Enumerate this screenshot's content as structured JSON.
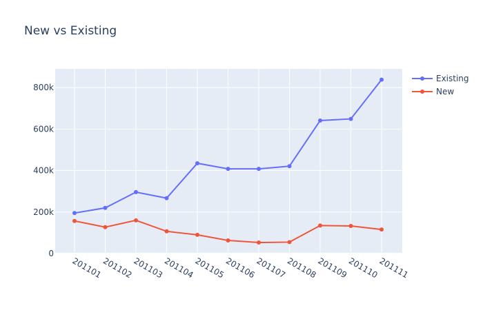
{
  "chart_data": {
    "type": "line",
    "title": "New vs Existing",
    "xlabel": "",
    "ylabel": "",
    "categories": [
      "201101",
      "201102",
      "201103",
      "201104",
      "201105",
      "201106",
      "201107",
      "201108",
      "201109",
      "201110",
      "201111"
    ],
    "series": [
      {
        "name": "Existing",
        "color": "#636efa",
        "values": [
          195000,
          220000,
          296000,
          267000,
          435000,
          408000,
          408000,
          421000,
          641000,
          649000,
          838000
        ]
      },
      {
        "name": "New",
        "color": "#ef553b",
        "values": [
          157000,
          127000,
          160000,
          107000,
          90000,
          63000,
          53000,
          55000,
          135000,
          133000,
          116000
        ]
      }
    ],
    "yticks": [
      0,
      200000,
      400000,
      600000,
      800000
    ],
    "ytick_labels": [
      "0",
      "200k",
      "400k",
      "600k",
      "800k"
    ],
    "ylim": [
      0,
      890000
    ],
    "grid": true,
    "legend_position": "top-right"
  }
}
